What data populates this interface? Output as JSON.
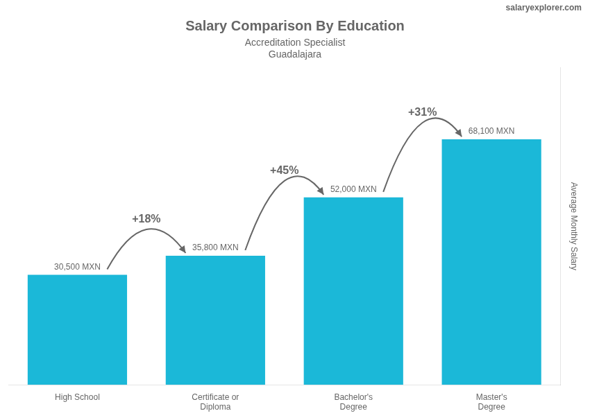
{
  "chart_data": {
    "type": "bar",
    "title": "Salary Comparison By Education",
    "subtitle": [
      "Accreditation Specialist",
      "Guadalajara"
    ],
    "ylabel": "Average Monthly Salary",
    "categories": [
      "High School",
      "Certificate or\nDiploma",
      "Bachelor's\nDegree",
      "Master's\nDegree"
    ],
    "values": [
      30500,
      35800,
      52000,
      68100
    ],
    "value_labels": [
      "30,500 MXN",
      "35,800 MXN",
      "52,000 MXN",
      "68,100 MXN"
    ],
    "data_labels": true,
    "color": "#1BB8D8",
    "ylim": [
      0,
      88000
    ],
    "grid": false,
    "tick_labels": "x",
    "annotations": [
      {
        "text": "+18%",
        "from": "High School",
        "to": "Certificate or\nDiploma"
      },
      {
        "text": "+45%",
        "from": "Certificate or\nDiploma",
        "to": "Bachelor's\nDegree"
      },
      {
        "text": "+31%",
        "from": "Bachelor's\nDegree",
        "to": "Master's\nDegree"
      },
      {
        "text": "salaryexplorer.com"
      }
    ]
  }
}
